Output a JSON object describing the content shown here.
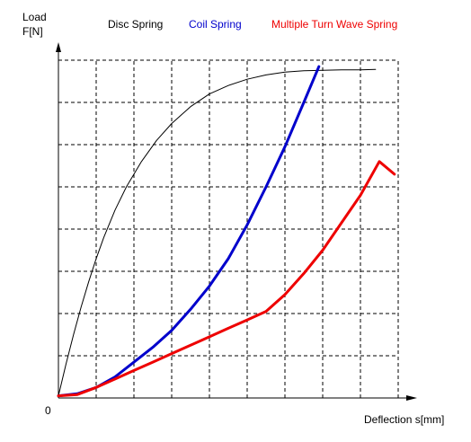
{
  "chart_data": {
    "type": "line",
    "ylabel_line1": "Load",
    "ylabel_line2": "F[N]",
    "xlabel": "Deflection  s[mm]",
    "origin_label": "0",
    "xlim": [
      0,
      9.5
    ],
    "ylim": [
      0,
      8
    ],
    "grid": true,
    "legend_position": "top",
    "series": [
      {
        "name": "Disc Spring",
        "color": "#000000",
        "width": 1,
        "x": [
          0,
          0.2,
          0.4,
          0.6,
          0.8,
          1.0,
          1.2,
          1.5,
          1.8,
          2.2,
          2.6,
          3.0,
          3.5,
          4.0,
          4.5,
          5.0,
          5.5,
          6.0,
          6.5,
          7.0,
          7.5,
          8.0,
          8.4
        ],
        "y": [
          0.05,
          0.8,
          1.5,
          2.15,
          2.75,
          3.3,
          3.8,
          4.45,
          5.0,
          5.6,
          6.1,
          6.5,
          6.9,
          7.2,
          7.4,
          7.55,
          7.65,
          7.72,
          7.75,
          7.76,
          7.77,
          7.77,
          7.78
        ]
      },
      {
        "name": "Coil Spring",
        "color": "#0000cc",
        "width": 3,
        "x": [
          0,
          0.5,
          1.0,
          1.5,
          2.0,
          2.5,
          3.0,
          3.5,
          4.0,
          4.5,
          5.0,
          5.5,
          6.0,
          6.5,
          6.9
        ],
        "y": [
          0.05,
          0.1,
          0.25,
          0.5,
          0.85,
          1.2,
          1.6,
          2.1,
          2.65,
          3.3,
          4.1,
          5.0,
          5.95,
          7.0,
          7.85
        ]
      },
      {
        "name": "Multiple Turn Wave Spring",
        "color": "#ee0000",
        "width": 3,
        "x": [
          0,
          0.5,
          1.0,
          1.5,
          2.0,
          2.5,
          3.0,
          3.5,
          4.0,
          4.5,
          5.0,
          5.5,
          6.0,
          6.5,
          7.0,
          7.5,
          8.0,
          8.5,
          8.9
        ],
        "y": [
          0.05,
          0.08,
          0.25,
          0.45,
          0.65,
          0.85,
          1.05,
          1.25,
          1.45,
          1.65,
          1.85,
          2.05,
          2.45,
          2.95,
          3.5,
          4.15,
          4.8,
          5.6,
          5.3
        ]
      }
    ]
  }
}
